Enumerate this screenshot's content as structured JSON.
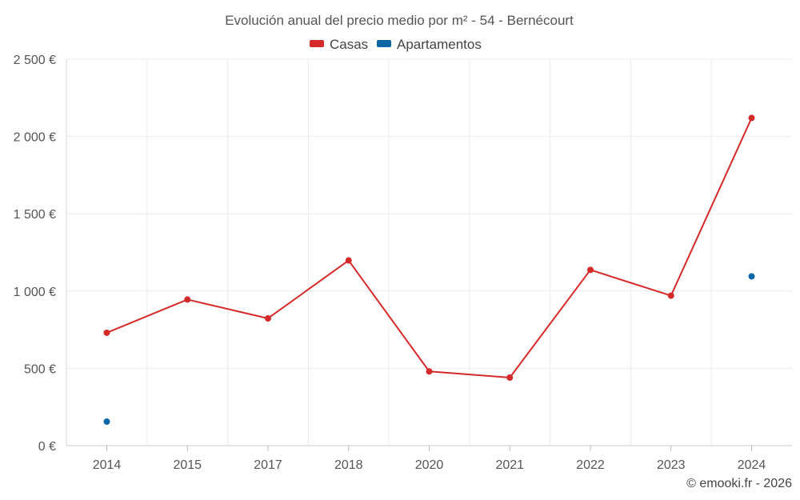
{
  "chart_data": {
    "type": "line",
    "title": "Evolución anual del precio medio por m² - 54 - Bernécourt",
    "categories": [
      "2014",
      "2015",
      "2017",
      "2018",
      "2020",
      "2021",
      "2022",
      "2023",
      "2024"
    ],
    "y_tick_labels": [
      "0 €",
      "500 €",
      "1 000 €",
      "1 500 €",
      "2 000 €",
      "2 500 €"
    ],
    "y_ticks": [
      0,
      500,
      1000,
      1500,
      2000,
      2500
    ],
    "ylim": [
      0,
      2500
    ],
    "grid": true,
    "legend_position": "top-center",
    "series": [
      {
        "name": "Casas",
        "color": "#d42a2a",
        "values": [
          730,
          945,
          823,
          1198,
          480,
          440,
          1137,
          970,
          2120
        ]
      },
      {
        "name": "Apartamentos",
        "color": "#0b66a6",
        "values": [
          155,
          null,
          null,
          null,
          null,
          null,
          null,
          null,
          1095
        ]
      }
    ]
  },
  "credit": "© emooki.fr - 2026"
}
